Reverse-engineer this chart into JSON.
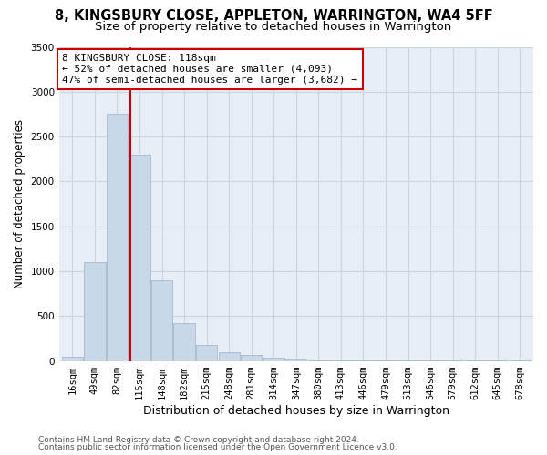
{
  "title1": "8, KINGSBURY CLOSE, APPLETON, WARRINGTON, WA4 5FF",
  "title2": "Size of property relative to detached houses in Warrington",
  "xlabel": "Distribution of detached houses by size in Warrington",
  "ylabel": "Number of detached properties",
  "footnote1": "Contains HM Land Registry data © Crown copyright and database right 2024.",
  "footnote2": "Contains public sector information licensed under the Open Government Licence v3.0.",
  "bin_labels": [
    "16sqm",
    "49sqm",
    "82sqm",
    "115sqm",
    "148sqm",
    "182sqm",
    "215sqm",
    "248sqm",
    "281sqm",
    "314sqm",
    "347sqm",
    "380sqm",
    "413sqm",
    "446sqm",
    "479sqm",
    "513sqm",
    "546sqm",
    "579sqm",
    "612sqm",
    "645sqm",
    "678sqm"
  ],
  "bin_edges": [
    0,
    1,
    2,
    3,
    4,
    5,
    6,
    7,
    8,
    9,
    10,
    11,
    12,
    13,
    14,
    15,
    16,
    17,
    18,
    19,
    20,
    21
  ],
  "bar_heights": [
    50,
    1100,
    2750,
    2300,
    900,
    420,
    175,
    100,
    65,
    35,
    15,
    10,
    8,
    5,
    3,
    2,
    2,
    1,
    1,
    1,
    1
  ],
  "bar_color": "#c8d8e8",
  "bar_edge_color": "#9ab0c8",
  "red_line_x": 3.09,
  "annotation_text": "8 KINGSBURY CLOSE: 118sqm\n← 52% of detached houses are smaller (4,093)\n47% of semi-detached houses are larger (3,682) →",
  "annotation_box_color": "#ffffff",
  "annotation_box_edge": "#cc0000",
  "red_line_color": "#cc0000",
  "ylim": [
    0,
    3500
  ],
  "yticks": [
    0,
    500,
    1000,
    1500,
    2000,
    2500,
    3000,
    3500
  ],
  "grid_color": "#ccd4e0",
  "background_color": "#e8eef6",
  "title1_fontsize": 10.5,
  "title2_fontsize": 9.5,
  "xlabel_fontsize": 9,
  "ylabel_fontsize": 8.5,
  "tick_fontsize": 7.5,
  "annotation_fontsize": 8,
  "footnote_fontsize": 6.5
}
